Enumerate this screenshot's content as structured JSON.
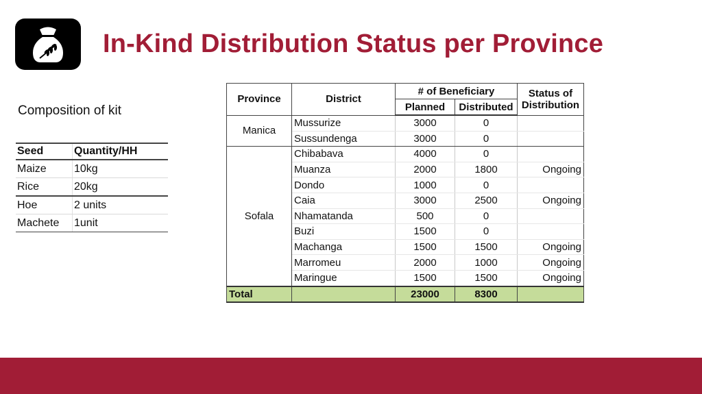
{
  "header": {
    "title": "In-Kind Distribution Status per Province",
    "logo_icon": "seed-sack-wheat-icon",
    "accent_color": "#a11d36"
  },
  "kit": {
    "heading": "Composition of kit",
    "columns": [
      "Seed",
      "Quantity/HH"
    ],
    "rows": [
      {
        "item": "Maize",
        "qty": "10kg"
      },
      {
        "item": "Rice",
        "qty": "20kg"
      },
      {
        "item": "Hoe",
        "qty": "2 units"
      },
      {
        "item": "Machete",
        "qty": "1unit"
      }
    ]
  },
  "distribution": {
    "headers": {
      "province": "Province",
      "district": "District",
      "beneficiary": "# of Beneficiary",
      "planned": "Planned",
      "distributed": "Distributed",
      "status": "Status of Distribution"
    },
    "provinces": [
      {
        "name": "Manica",
        "rows": [
          {
            "district": "Mussurize",
            "planned": "3000",
            "distributed": "0",
            "status": ""
          },
          {
            "district": "Sussundenga",
            "planned": "3000",
            "distributed": "0",
            "status": ""
          }
        ]
      },
      {
        "name": "Sofala",
        "rows": [
          {
            "district": "Chibabava",
            "planned": "4000",
            "distributed": "0",
            "status": ""
          },
          {
            "district": "Muanza",
            "planned": "2000",
            "distributed": "1800",
            "status": "Ongoing"
          },
          {
            "district": "Dondo",
            "planned": "1000",
            "distributed": "0",
            "status": ""
          },
          {
            "district": "Caia",
            "planned": "3000",
            "distributed": "2500",
            "status": "Ongoing"
          },
          {
            "district": "Nhamatanda",
            "planned": "500",
            "distributed": "0",
            "status": ""
          },
          {
            "district": "Buzi",
            "planned": "1500",
            "distributed": "0",
            "status": ""
          },
          {
            "district": "Machanga",
            "planned": "1500",
            "distributed": "1500",
            "status": "Ongoing"
          },
          {
            "district": "Marromeu",
            "planned": "2000",
            "distributed": "1000",
            "status": "Ongoing"
          },
          {
            "district": "Maringue",
            "planned": "1500",
            "distributed": "1500",
            "status": "Ongoing"
          }
        ]
      }
    ],
    "total": {
      "label": "Total",
      "planned": "23000",
      "distributed": "8300"
    },
    "total_row_color": "#c5dc9a"
  },
  "footer": {
    "bar_color": "#a11d36"
  }
}
